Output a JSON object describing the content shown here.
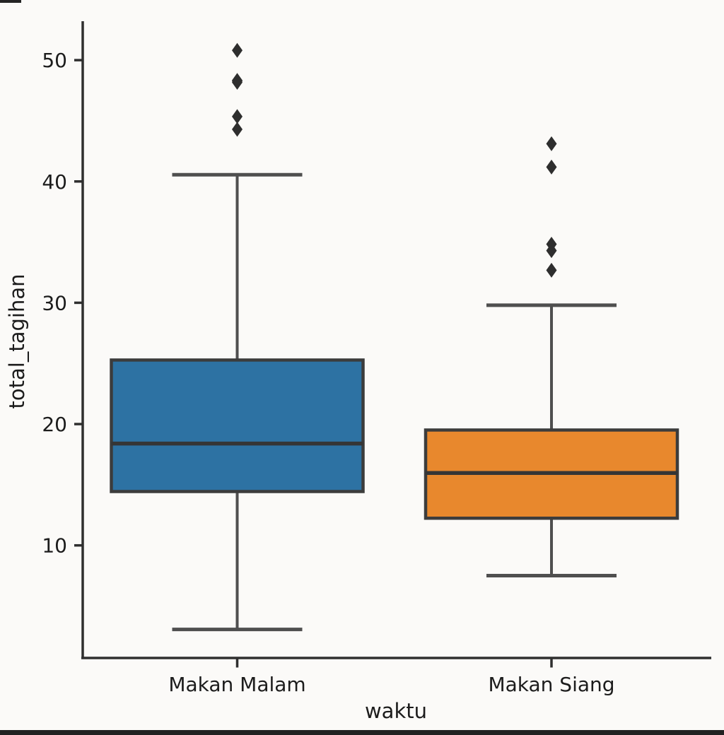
{
  "figure": {
    "background": "#fbfaf8",
    "axis_color": "#2f2f2f",
    "text_color": "#1c1c1c",
    "whisker_color": "#4f4f4f",
    "box_edge_color": "#3c3c3c",
    "median_color": "#353535",
    "outlier_color": "#2e2e2e",
    "bottom_edge_bar_color": "#212121"
  },
  "chart_data": {
    "type": "box",
    "title": "",
    "xlabel": "waktu",
    "ylabel": "total_tagihan",
    "categories": [
      "Makan Malam",
      "Makan Siang"
    ],
    "yticks": [
      "10",
      "20",
      "30",
      "40",
      "50"
    ],
    "ytick_values": [
      10,
      20,
      30,
      40,
      50
    ],
    "ylim": [
      0.8,
      53.2
    ],
    "grid": false,
    "legend": "none",
    "series": [
      {
        "name": "Makan Malam",
        "box_color": "#2d72a3",
        "q1": 14.44,
        "median": 18.39,
        "q3": 25.28,
        "whisker_low": 3.07,
        "whisker_high": 40.55,
        "outliers": [
          44.3,
          45.35,
          48.17,
          48.27,
          48.33,
          50.81
        ]
      },
      {
        "name": "Makan Siang",
        "box_color": "#e8882d",
        "q1": 12.24,
        "median": 15.97,
        "q3": 19.51,
        "whisker_low": 7.51,
        "whisker_high": 29.8,
        "outliers": [
          32.68,
          34.3,
          34.83,
          41.19,
          43.11
        ]
      }
    ]
  }
}
